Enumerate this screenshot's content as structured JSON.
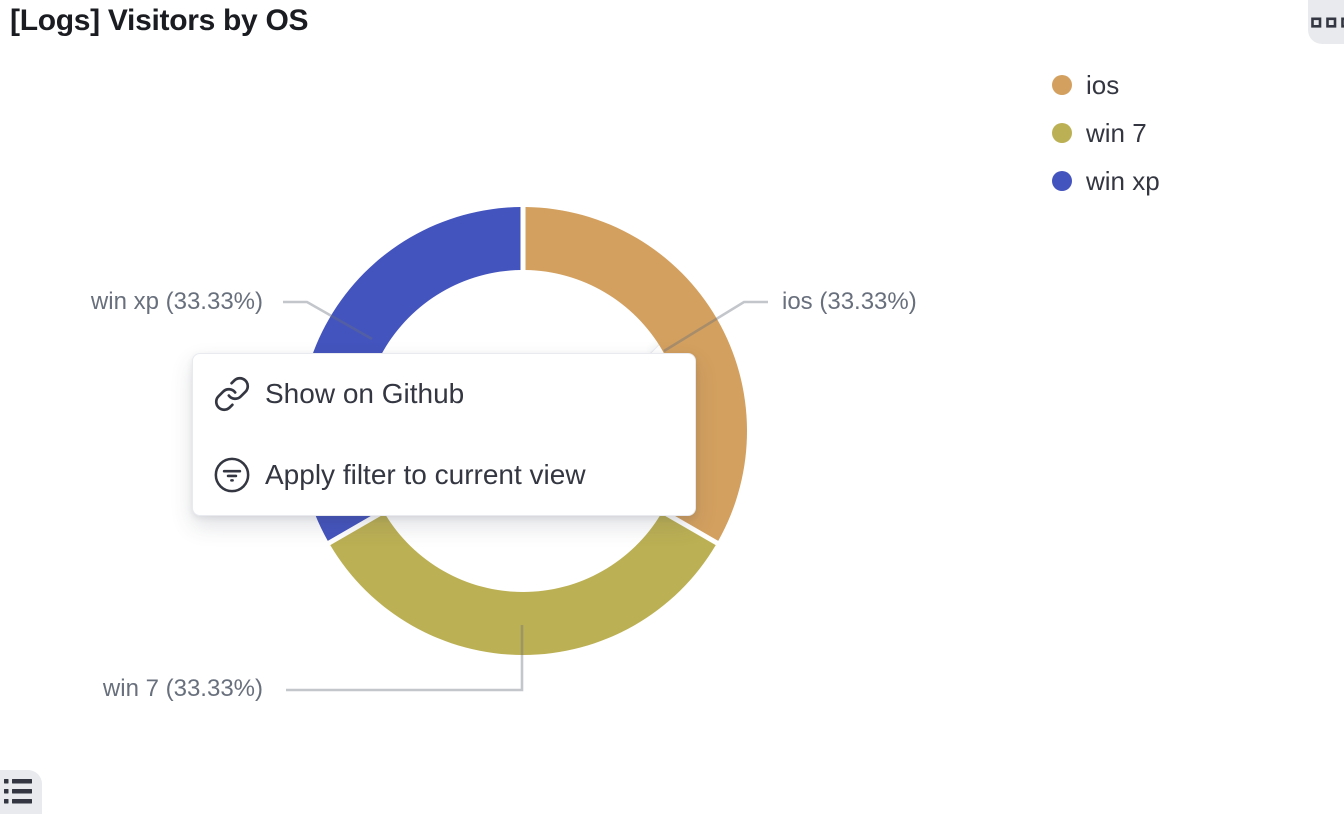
{
  "header": {
    "title": "[Logs] Visitors by OS"
  },
  "icons": {
    "panel_options": "boxes-horizontal-icon",
    "legend_toggle": "list-icon",
    "menu_link": "link-icon",
    "menu_filter": "filter-in-circle-icon"
  },
  "legend": {
    "position": "right",
    "items": [
      {
        "label": "ios",
        "color": "#D3A05F"
      },
      {
        "label": "win 7",
        "color": "#BCB054"
      },
      {
        "label": "win xp",
        "color": "#4454BE"
      }
    ]
  },
  "chart_data": {
    "type": "pie",
    "subtype": "donut",
    "title": "[Logs] Visitors by OS",
    "start_angle_deg_from_top": 0,
    "clockwise": true,
    "inner_radius_ratio": 0.72,
    "legend_position": "right",
    "slices": [
      {
        "label": "ios",
        "value": 33.33,
        "color": "#D3A05F",
        "callout": "ios (33.33%)"
      },
      {
        "label": "win 7",
        "value": 33.33,
        "color": "#BCB054",
        "callout": "win 7 (33.33%)"
      },
      {
        "label": "win xp",
        "value": 33.33,
        "color": "#4454BE",
        "callout": "win xp (33.33%)"
      }
    ]
  },
  "context_menu": {
    "items": [
      {
        "icon": "link-icon",
        "label": "Show on Github"
      },
      {
        "icon": "filter-in-circle-icon",
        "label": "Apply filter to current view"
      }
    ]
  },
  "colors": {
    "title_text": "#1A1C21",
    "legend_text": "#343741",
    "callout_text": "#69707D",
    "menu_text": "#343741",
    "leader_line": "#D4D7DE",
    "corner_button_bg": "#E9EAEE"
  }
}
